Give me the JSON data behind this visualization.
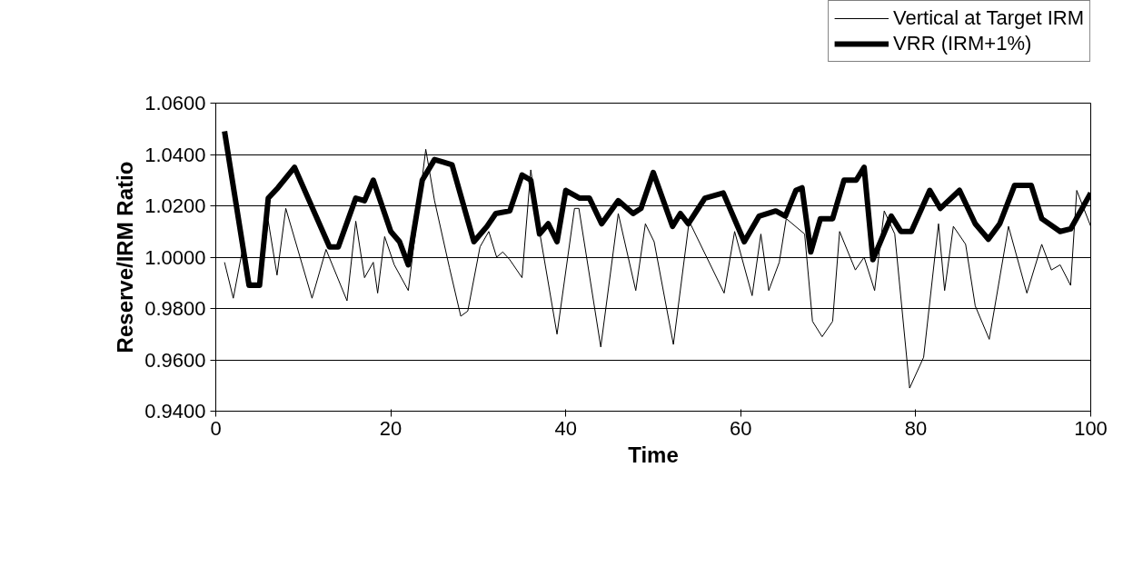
{
  "chart_data": {
    "type": "line",
    "xlabel": "Time",
    "ylabel": "Reserve/IRM Ratio",
    "xlim": [
      0,
      100
    ],
    "ylim": [
      0.94,
      1.06
    ],
    "xticks": [
      0,
      20,
      40,
      60,
      80,
      100
    ],
    "yticks": [
      {
        "value": 0.94,
        "label": "0.9400"
      },
      {
        "value": 0.96,
        "label": "0.9600"
      },
      {
        "value": 0.98,
        "label": "0.9800"
      },
      {
        "value": 1.0,
        "label": "1.0000"
      },
      {
        "value": 1.02,
        "label": "1.0200"
      },
      {
        "value": 1.04,
        "label": "1.0400"
      },
      {
        "value": 1.06,
        "label": "1.0600"
      }
    ],
    "grid": "y",
    "legend": "top right",
    "marker": "none",
    "series": [
      {
        "name": "Vertical at Target IRM",
        "color": "#000000",
        "line_style": "solid",
        "x": [
          1,
          2,
          3,
          4,
          5,
          6,
          7,
          8,
          11,
          12.6,
          15,
          16,
          17,
          18,
          18.5,
          19.3,
          20.4,
          22,
          24,
          25,
          26.7,
          28,
          28.8,
          30.2,
          31.2,
          32.1,
          32.8,
          33.6,
          35,
          36,
          37.1,
          39,
          41,
          41.5,
          44,
          46,
          48,
          49.1,
          50.1,
          52.3,
          54.1,
          58.1,
          59.3,
          61.3,
          62.3,
          63.2,
          64.4,
          65.2,
          67.3,
          68.2,
          69.3,
          70.5,
          71.3,
          73.1,
          74.1,
          75.3,
          76.4,
          77.6,
          79.3,
          80.9,
          82.6,
          83.3,
          84.3,
          85.7,
          86.8,
          88.4,
          90.6,
          92.7,
          94.4,
          95.5,
          96.5,
          97.7,
          98.4,
          100
        ],
        "values": [
          0.998,
          0.984,
          1.002,
          0.99,
          0.99,
          1.014,
          0.993,
          1.019,
          0.984,
          1.003,
          0.983,
          1.014,
          0.992,
          0.998,
          0.986,
          1.008,
          0.997,
          0.987,
          1.042,
          1.022,
          0.996,
          0.977,
          0.979,
          1.004,
          1.01,
          1.0,
          1.002,
          0.999,
          0.992,
          1.034,
          1.008,
          0.97,
          1.019,
          1.019,
          0.965,
          1.017,
          0.987,
          1.013,
          1.006,
          0.966,
          1.014,
          0.986,
          1.01,
          0.985,
          1.009,
          0.987,
          0.998,
          1.015,
          1.009,
          0.975,
          0.969,
          0.975,
          1.01,
          0.995,
          1.0,
          0.987,
          1.018,
          1.009,
          0.949,
          0.961,
          1.013,
          0.987,
          1.012,
          1.005,
          0.981,
          0.968,
          1.012,
          0.986,
          1.005,
          0.995,
          0.997,
          0.989,
          1.026,
          1.012
        ]
      },
      {
        "name": "VRR (IRM+1%)",
        "color": "#000000",
        "line_style": "solid",
        "x": [
          1,
          3.8,
          5,
          6,
          7.1,
          9,
          13,
          14,
          16,
          17,
          18,
          20,
          21,
          22,
          23.6,
          25,
          26,
          27,
          29.5,
          31,
          32,
          33.6,
          35,
          36,
          37,
          38,
          39,
          40,
          41.6,
          42.7,
          44.1,
          46,
          47.7,
          48.6,
          50,
          52.2,
          53.1,
          54,
          55.9,
          58,
          60.4,
          62.1,
          64,
          65.1,
          66.3,
          67,
          68,
          69.1,
          70.5,
          71.8,
          73.2,
          74.1,
          75.1,
          77.2,
          78.3,
          79.5,
          81.6,
          82.8,
          85,
          86.8,
          88.3,
          89.6,
          91.3,
          93.2,
          94.4,
          96.5,
          97.7,
          100
        ],
        "values": [
          1.049,
          0.989,
          0.989,
          1.023,
          1.027,
          1.035,
          1.004,
          1.004,
          1.023,
          1.022,
          1.03,
          1.01,
          1.006,
          0.997,
          1.03,
          1.038,
          1.037,
          1.036,
          1.006,
          1.012,
          1.017,
          1.018,
          1.032,
          1.03,
          1.009,
          1.013,
          1.006,
          1.026,
          1.023,
          1.023,
          1.013,
          1.022,
          1.017,
          1.019,
          1.033,
          1.012,
          1.017,
          1.013,
          1.023,
          1.025,
          1.006,
          1.016,
          1.018,
          1.016,
          1.026,
          1.027,
          1.002,
          1.015,
          1.015,
          1.03,
          1.03,
          1.035,
          0.999,
          1.016,
          1.01,
          1.01,
          1.026,
          1.019,
          1.026,
          1.013,
          1.007,
          1.013,
          1.028,
          1.028,
          1.015,
          1.01,
          1.011,
          1.025
        ]
      }
    ]
  }
}
